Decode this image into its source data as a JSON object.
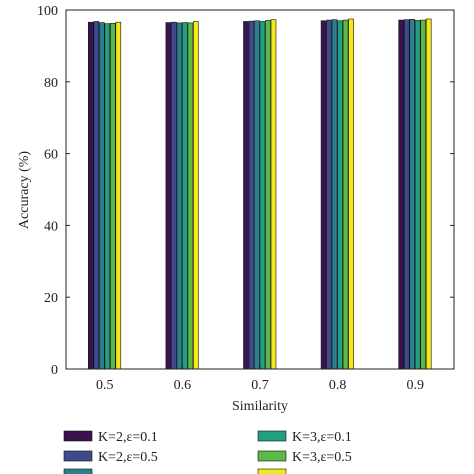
{
  "chart_data": {
    "type": "bar",
    "xlabel": "Similarity",
    "ylabel": "Accuracy (%)",
    "ylim": [
      0,
      100
    ],
    "yticks": [
      "0",
      "20",
      "40",
      "60",
      "80",
      "100"
    ],
    "categories": [
      "0.5",
      "0.6",
      "0.7",
      "0.8",
      "0.9"
    ],
    "grid": false,
    "legend_placement": "bottom",
    "series": [
      {
        "name": "K=2,ε=0.1",
        "color": "#3b1250",
        "values": [
          96.6,
          96.5,
          96.8,
          97.0,
          97.2
        ]
      },
      {
        "name": "K=2,ε=0.5",
        "color": "#3f4a8c",
        "values": [
          96.8,
          96.6,
          96.9,
          97.2,
          97.3
        ]
      },
      {
        "name": "",
        "color": "#2c7f8e",
        "values": [
          96.5,
          96.4,
          97.0,
          97.3,
          97.4
        ]
      },
      {
        "name": "K=3,ε=0.1",
        "color": "#22a07f",
        "values": [
          96.2,
          96.5,
          96.8,
          97.0,
          97.1
        ]
      },
      {
        "name": "K=3,ε=0.5",
        "color": "#5db846",
        "values": [
          96.3,
          96.4,
          97.1,
          97.2,
          97.2
        ]
      },
      {
        "name": "",
        "color": "#f2e91c",
        "values": [
          96.6,
          96.8,
          97.3,
          97.5,
          97.5
        ]
      }
    ]
  }
}
